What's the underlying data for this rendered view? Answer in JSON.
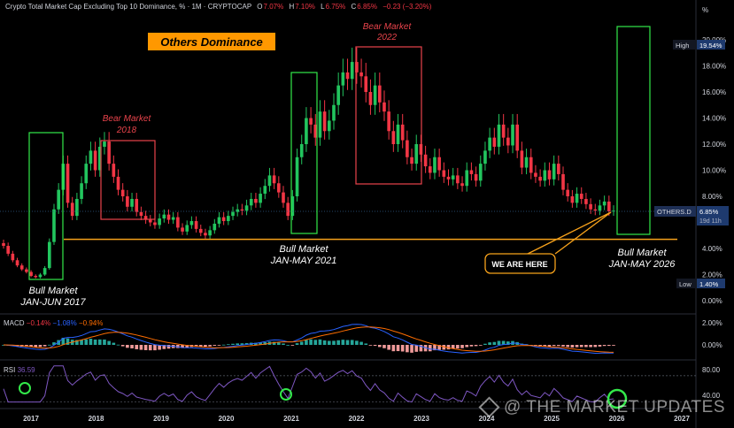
{
  "header": {
    "title": "Crypto Total Market Cap Excluding Top 10 Dominance, % · 1M · CRYPTOCAP",
    "o_label": "O",
    "o_value": "7.07%",
    "h_label": "H",
    "h_value": "7.10%",
    "l_label": "L",
    "l_value": "6.75%",
    "c_label": "C",
    "c_value": "6.85%",
    "change": "−0.23 (−3.20%)",
    "unit": "%"
  },
  "annotations": {
    "title_box": "Others Dominance",
    "bear_2018": [
      "Bear Market",
      "2018"
    ],
    "bear_2022": [
      "Bear Market",
      "2022"
    ],
    "bull_2017": [
      "Bull Market",
      "JAN-JUN 2017"
    ],
    "bull_2021": [
      "Bull Market",
      "JAN-MAY 2021"
    ],
    "bull_2026": [
      "Bull Market",
      "JAN-MAY 2026"
    ],
    "we_are_here": "WE ARE HERE"
  },
  "price_scale": {
    "high_label": "High",
    "high_value": "19.54%",
    "low_label": "Low",
    "low_value": "1.40%",
    "symbol_label": "OTHERS.D",
    "symbol_value": "6.85%",
    "countdown": "19d 11h"
  },
  "macd_pane": {
    "label": "MACD",
    "v1": "−0.14%",
    "v2": "−1.08%",
    "v3": "−0.94%"
  },
  "rsi_pane": {
    "label": "RSI",
    "value": "36.59"
  },
  "watermark": "@ THE MARKET UPDATES",
  "colors": {
    "up": "#22c55e",
    "down": "#f23645",
    "macd_line": "#2962ff",
    "signal_line": "#ff6d00",
    "rsi_line": "#7e57c2",
    "support": "#f7a21b",
    "bull_box": "#33e84a",
    "bear_box": "#e8434b",
    "title_box_bg": "#ff9800"
  },
  "chart_data": {
    "type": "candlestick",
    "title": "Crypto Total Market Cap Excluding Top 10 Dominance, %",
    "interval": "1M",
    "y_scale": "linear",
    "ylim": [
      0,
      20.5
    ],
    "y_ticks": [
      "20.00%",
      "18.00%",
      "16.00%",
      "14.00%",
      "12.00%",
      "10.00%",
      "8.00%",
      "6.00%",
      "4.00%",
      "2.00%",
      "0.00%"
    ],
    "x_ticks": [
      "2017",
      "2018",
      "2019",
      "2020",
      "2021",
      "2022",
      "2023",
      "2024",
      "2025",
      "2026",
      "2027"
    ],
    "support_level": 4.7,
    "current_value": 6.85,
    "high": 19.54,
    "low": 1.4,
    "closes": [
      4.2,
      3.6,
      3.1,
      2.7,
      2.4,
      2.2,
      1.9,
      1.8,
      2.0,
      2.5,
      4.5,
      7.0,
      8.5,
      10.5,
      7.5,
      6.5,
      7.8,
      9.0,
      10.5,
      11.5,
      10.0,
      11.8,
      12.2,
      10.5,
      9.5,
      8.5,
      8.0,
      7.2,
      7.8,
      6.8,
      6.5,
      6.2,
      6.0,
      5.8,
      6.3,
      6.6,
      6.2,
      6.4,
      5.6,
      5.3,
      5.8,
      6.1,
      5.5,
      5.2,
      5.0,
      5.4,
      5.9,
      6.4,
      6.1,
      6.5,
      6.8,
      7.0,
      6.9,
      7.3,
      7.8,
      7.5,
      8.2,
      8.8,
      9.6,
      9.0,
      8.3,
      7.5,
      6.5,
      8.0,
      11.0,
      12.0,
      14.0,
      13.5,
      12.5,
      14.5,
      13.0,
      13.8,
      15.0,
      16.5,
      17.5,
      17.0,
      18.3,
      17.5,
      17.2,
      16.0,
      15.0,
      16.5,
      15.2,
      14.5,
      13.0,
      12.0,
      13.5,
      12.3,
      11.0,
      10.5,
      12.0,
      11.2,
      10.3,
      9.8,
      11.0,
      10.0,
      9.5,
      9.3,
      9.6,
      9.0,
      8.8,
      10.0,
      9.7,
      9.2,
      10.5,
      11.5,
      12.5,
      11.8,
      13.5,
      12.5,
      11.9,
      13.5,
      11.5,
      10.2,
      11.0,
      9.8,
      9.5,
      9.2,
      10.0,
      9.3,
      10.5,
      9.7,
      8.5,
      8.0,
      7.5,
      8.2,
      7.8,
      7.4,
      7.0,
      6.9,
      7.3,
      7.6,
      6.85,
      6.9
    ]
  }
}
